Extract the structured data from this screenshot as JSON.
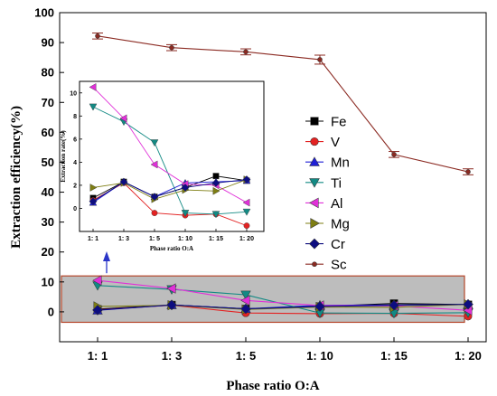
{
  "chart_data": {
    "type": "line",
    "xlabel": "Phase ratio O:A",
    "ylabel": "Extraction efficiency(%)",
    "categories": [
      "1: 1",
      "1: 3",
      "1: 5",
      "1: 10",
      "1: 15",
      "1: 20"
    ],
    "ylim": [
      -10,
      100
    ],
    "yticks": [
      0,
      10,
      20,
      30,
      40,
      50,
      60,
      70,
      80,
      90,
      100
    ],
    "legend_position": "right",
    "series": [
      {
        "name": "Fe",
        "color": "#000000",
        "marker": "square",
        "values": [
          0.9,
          2.3,
          1.0,
          1.8,
          2.8,
          2.4
        ]
      },
      {
        "name": "V",
        "color": "#e32222",
        "marker": "circle",
        "values": [
          0.7,
          2.2,
          -0.4,
          -0.6,
          -0.5,
          -1.5
        ]
      },
      {
        "name": "Mn",
        "color": "#1f1fd6",
        "marker": "triangle-up",
        "values": [
          0.5,
          2.3,
          1.0,
          2.2,
          2.3,
          2.4
        ]
      },
      {
        "name": "Ti",
        "color": "#138a84",
        "marker": "triangle-down",
        "values": [
          8.8,
          7.5,
          5.7,
          -0.4,
          -0.5,
          -0.3
        ]
      },
      {
        "name": "Al",
        "color": "#e030d8",
        "marker": "triangle-left",
        "values": [
          10.5,
          7.8,
          3.8,
          2.1,
          2.0,
          0.5
        ]
      },
      {
        "name": "Mg",
        "color": "#7e7e13",
        "marker": "triangle-right",
        "values": [
          1.8,
          2.2,
          0.8,
          1.6,
          1.5,
          2.5
        ]
      },
      {
        "name": "Cr",
        "color": "#0d0d80",
        "marker": "diamond",
        "values": [
          0.6,
          2.3,
          1.0,
          1.8,
          2.2,
          2.5
        ]
      },
      {
        "name": "Sc",
        "color": "#8b2a22",
        "marker": "small-circle",
        "values": [
          92.2,
          88.3,
          86.9,
          84.3,
          52.6,
          46.8
        ],
        "errors": [
          1.0,
          1.0,
          1.0,
          1.5,
          1.0,
          1.0
        ]
      }
    ],
    "inset": {
      "ylabel": "Extraction rate(%)",
      "xlabel": "Phase ratio O:A",
      "categories": [
        "1: 1",
        "1: 3",
        "1: 5",
        "1: 10",
        "1: 15",
        "1: 20"
      ],
      "ylim": [
        -2,
        11
      ],
      "yticks": [
        0,
        2,
        4,
        6,
        8,
        10
      ],
      "series_excluded": [
        "Sc"
      ]
    },
    "highlight_band": {
      "y_range": [
        -3.5,
        12
      ],
      "fill": "#bdbdbd",
      "stroke": "#b5462a"
    },
    "arrow_color": "#2a35c8"
  }
}
